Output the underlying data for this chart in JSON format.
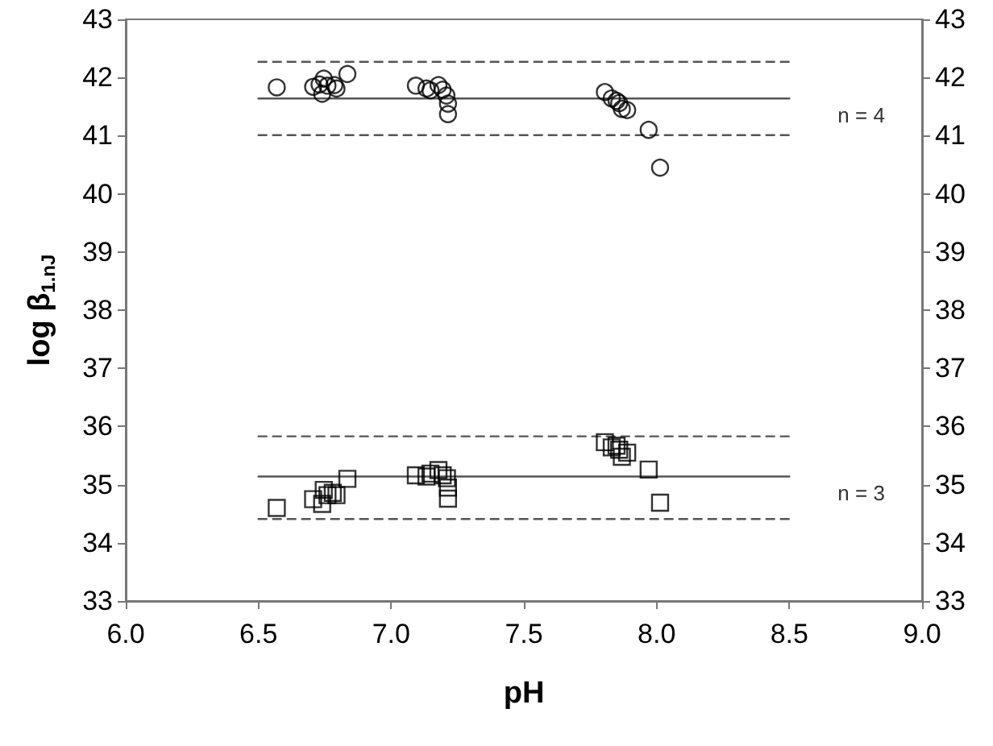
{
  "chart_data": {
    "type": "scatter",
    "xlabel": "pH",
    "ylabel": "log β$_{1.nJ}$",
    "xlim": [
      6.0,
      9.0
    ],
    "xticks": [
      {
        "value": 6.0,
        "label": "6.0"
      },
      {
        "value": 6.5,
        "label": "6.5"
      },
      {
        "value": 7.0,
        "label": "7.0"
      },
      {
        "value": 7.5,
        "label": "7.5"
      },
      {
        "value": 8.0,
        "label": "8.0"
      },
      {
        "value": 8.5,
        "label": "8.5"
      },
      {
        "value": 9.0,
        "label": "9.0"
      }
    ],
    "ylim": [
      33,
      43
    ],
    "yticks": [
      33,
      34,
      35,
      36,
      37,
      38,
      39,
      40,
      41,
      42,
      43
    ],
    "y2lim": [
      33,
      43
    ],
    "y2ticks": [
      33,
      34,
      35,
      36,
      37,
      38,
      39,
      40,
      41,
      42,
      43
    ],
    "grid": false,
    "series": [
      {
        "marker": "circle",
        "color": "#000000",
        "x": [
          6.569,
          6.706,
          6.73,
          6.746,
          6.74,
          6.76,
          6.786,
          6.794,
          6.835,
          7.093,
          7.133,
          7.148,
          7.178,
          7.194,
          7.208,
          7.214,
          7.214,
          7.805,
          7.831,
          7.849,
          7.859,
          7.869,
          7.889,
          7.97,
          8.013
        ],
        "values": [
          41.83,
          41.84,
          41.88,
          41.98,
          41.72,
          41.86,
          41.87,
          41.81,
          42.06,
          41.86,
          41.81,
          41.78,
          41.87,
          41.79,
          41.69,
          41.55,
          41.37,
          41.75,
          41.64,
          41.6,
          41.56,
          41.46,
          41.44,
          41.1,
          40.45
        ]
      },
      {
        "marker": "square",
        "color": "#000000",
        "x": [
          6.569,
          6.706,
          6.74,
          6.746,
          6.76,
          6.78,
          6.794,
          6.835,
          7.093,
          7.133,
          7.148,
          7.178,
          7.194,
          7.21,
          7.214,
          7.214,
          7.805,
          7.831,
          7.849,
          7.859,
          7.869,
          7.889,
          7.97,
          8.013
        ],
        "values": [
          34.6,
          34.75,
          34.67,
          34.91,
          34.82,
          34.86,
          34.82,
          35.1,
          35.16,
          35.14,
          35.19,
          35.25,
          35.16,
          35.11,
          34.95,
          34.76,
          35.73,
          35.64,
          35.67,
          35.6,
          35.48,
          35.55,
          35.26,
          34.69
        ]
      },
      {
        "type": "line",
        "line_style": "solid",
        "color": "#555555",
        "x": [
          6.5,
          8.5
        ],
        "values": [
          41.64,
          41.64
        ]
      },
      {
        "type": "line",
        "line_style": "dashed",
        "color": "#555555",
        "x": [
          6.5,
          8.5
        ],
        "values": [
          42.27,
          42.27
        ]
      },
      {
        "type": "line",
        "line_style": "dashed",
        "color": "#555555",
        "x": [
          6.5,
          8.5
        ],
        "values": [
          41.01,
          41.01
        ]
      },
      {
        "type": "line",
        "line_style": "solid",
        "color": "#555555",
        "x": [
          6.5,
          8.5
        ],
        "values": [
          35.14,
          35.14
        ]
      },
      {
        "type": "line",
        "line_style": "dashed",
        "color": "#555555",
        "x": [
          6.5,
          8.5
        ],
        "values": [
          35.83,
          35.83
        ]
      },
      {
        "type": "line",
        "line_style": "dashed",
        "color": "#555555",
        "x": [
          6.5,
          8.5
        ],
        "values": [
          34.41,
          34.41
        ]
      }
    ],
    "annotations": [
      "n = 4",
      "n = 3"
    ]
  }
}
